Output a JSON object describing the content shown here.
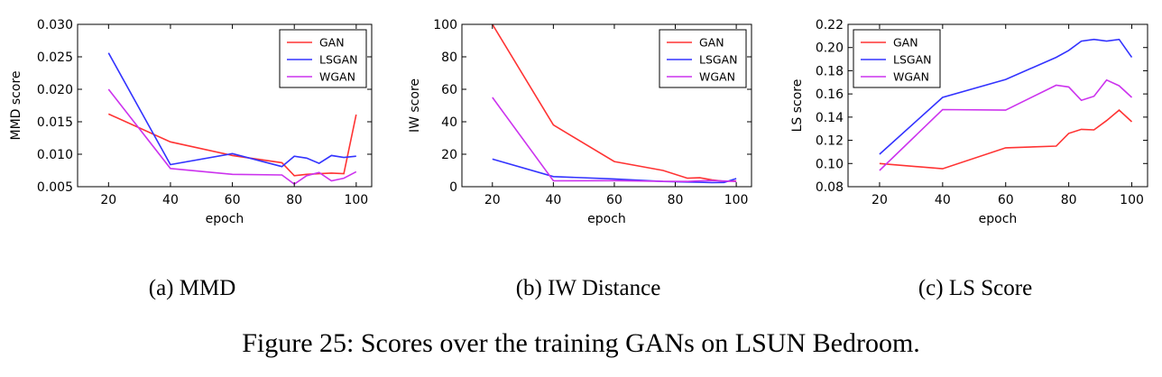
{
  "chart_data": [
    {
      "type": "line",
      "caption": "(a) MMD",
      "xlabel": "epoch",
      "ylabel": "MMD score",
      "xlim": [
        10,
        105
      ],
      "ylim": [
        0.005,
        0.03
      ],
      "xticks": [
        "20",
        "40",
        "60",
        "80",
        "100"
      ],
      "xtick_values": [
        20,
        40,
        60,
        80,
        100
      ],
      "yticks": [
        "0.005",
        "0.010",
        "0.015",
        "0.020",
        "0.025",
        "0.030"
      ],
      "ytick_values": [
        0.005,
        0.01,
        0.015,
        0.02,
        0.025,
        0.03
      ],
      "legend_position": "top-right",
      "series": [
        {
          "name": "GAN",
          "color": "#ff3333",
          "x": [
            20,
            40,
            60,
            76,
            80,
            84,
            88,
            92,
            96,
            100
          ],
          "y": [
            0.0162,
            0.0119,
            0.0098,
            0.0087,
            0.0067,
            0.0069,
            0.007,
            0.0071,
            0.007,
            0.0161
          ]
        },
        {
          "name": "LSGAN",
          "color": "#3333ff",
          "x": [
            20,
            40,
            60,
            76,
            80,
            84,
            88,
            92,
            96,
            100
          ],
          "y": [
            0.0256,
            0.0084,
            0.0101,
            0.0081,
            0.0097,
            0.0094,
            0.0086,
            0.0098,
            0.0095,
            0.0097
          ]
        },
        {
          "name": "WGAN",
          "color": "#cc33ee",
          "x": [
            20,
            40,
            60,
            76,
            80,
            84,
            88,
            92,
            96,
            100
          ],
          "y": [
            0.02,
            0.0078,
            0.0069,
            0.0068,
            0.0054,
            0.0067,
            0.0072,
            0.0059,
            0.0063,
            0.0073
          ]
        }
      ]
    },
    {
      "type": "line",
      "caption": "(b) IW Distance",
      "xlabel": "epoch",
      "ylabel": "IW score",
      "xlim": [
        10,
        105
      ],
      "ylim": [
        0,
        100
      ],
      "xticks": [
        "20",
        "40",
        "60",
        "80",
        "100"
      ],
      "xtick_values": [
        20,
        40,
        60,
        80,
        100
      ],
      "yticks": [
        "0",
        "20",
        "40",
        "60",
        "80",
        "100"
      ],
      "ytick_values": [
        0,
        20,
        40,
        60,
        80,
        100
      ],
      "legend_position": "top-right",
      "series": [
        {
          "name": "GAN",
          "color": "#ff3333",
          "x": [
            20,
            40,
            60,
            76,
            84,
            88,
            92,
            96,
            100
          ],
          "y": [
            100,
            38,
            15.5,
            10,
            5.2,
            5.5,
            4.2,
            3.3,
            3.5
          ]
        },
        {
          "name": "LSGAN",
          "color": "#3333ff",
          "x": [
            20,
            40,
            60,
            76,
            84,
            88,
            92,
            96,
            100
          ],
          "y": [
            17,
            6.2,
            4.8,
            3.2,
            2.9,
            2.7,
            2.5,
            2.6,
            5
          ]
        },
        {
          "name": "WGAN",
          "color": "#cc33ee",
          "x": [
            20,
            40,
            60,
            76,
            84,
            88,
            92,
            96,
            100
          ],
          "y": [
            55,
            3.6,
            3.7,
            3.3,
            3.2,
            3.6,
            3.8,
            3.5,
            3.2
          ]
        }
      ]
    },
    {
      "type": "line",
      "caption": "(c) LS Score",
      "xlabel": "epoch",
      "ylabel": "LS score",
      "xlim": [
        10,
        105
      ],
      "ylim": [
        0.08,
        0.22
      ],
      "xticks": [
        "20",
        "40",
        "60",
        "80",
        "100"
      ],
      "xtick_values": [
        20,
        40,
        60,
        80,
        100
      ],
      "yticks": [
        "0.08",
        "0.10",
        "0.12",
        "0.14",
        "0.16",
        "0.18",
        "0.20",
        "0.22"
      ],
      "ytick_values": [
        0.08,
        0.1,
        0.12,
        0.14,
        0.16,
        0.18,
        0.2,
        0.22
      ],
      "legend_position": "top-left",
      "series": [
        {
          "name": "GAN",
          "color": "#ff3333",
          "x": [
            20,
            40,
            60,
            76,
            80,
            84,
            88,
            92,
            96,
            100
          ],
          "y": [
            0.1,
            0.0955,
            0.1135,
            0.115,
            0.126,
            0.1295,
            0.129,
            0.137,
            0.146,
            0.136
          ]
        },
        {
          "name": "LSGAN",
          "color": "#3333ff",
          "x": [
            20,
            40,
            60,
            76,
            80,
            84,
            88,
            92,
            96,
            100
          ],
          "y": [
            0.108,
            0.157,
            0.1725,
            0.1915,
            0.1975,
            0.2055,
            0.207,
            0.2055,
            0.207,
            0.1915
          ]
        },
        {
          "name": "WGAN",
          "color": "#cc33ee",
          "x": [
            20,
            40,
            60,
            76,
            80,
            84,
            88,
            92,
            96,
            100
          ],
          "y": [
            0.094,
            0.1465,
            0.146,
            0.1675,
            0.166,
            0.1545,
            0.158,
            0.172,
            0.167,
            0.157
          ]
        }
      ]
    }
  ],
  "figure_caption": "Figure 25: Scores over the training GANs on LSUN Bedroom."
}
